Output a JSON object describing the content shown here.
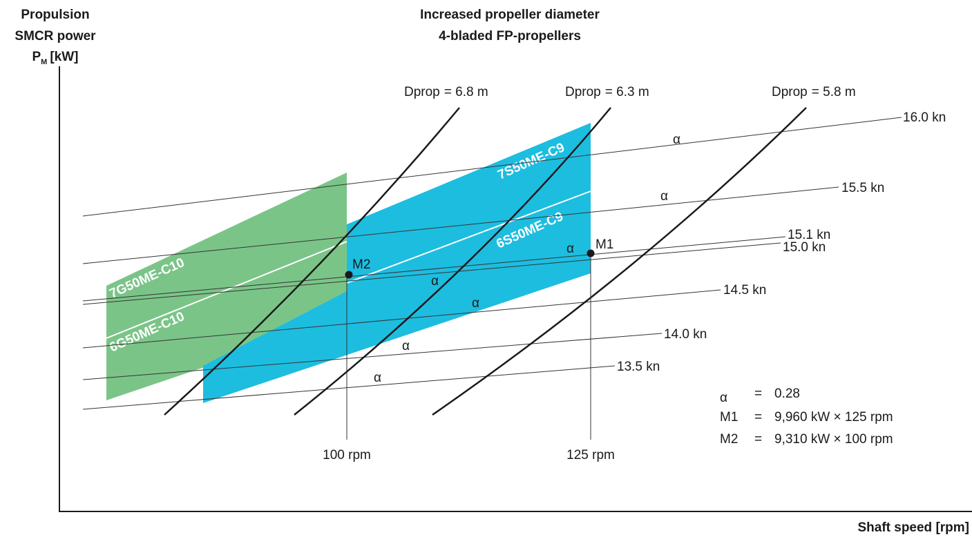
{
  "chart_data": {
    "type": "line",
    "title": "Increased propeller diameter",
    "subtitle": "4-bladed FP-propellers",
    "ylabel_lines": [
      "Propulsion",
      "SMCR power",
      "P",
      "M",
      "[kW]"
    ],
    "xlabel": "Shaft speed [rpm]",
    "engine_layouts": [
      {
        "name": "7G50ME-C10",
        "color": "#7bc488"
      },
      {
        "name": "6G50ME-C10",
        "color": "#7bc488"
      },
      {
        "name": "7S50ME-C9",
        "color": "#1dbde0"
      },
      {
        "name": "6S50ME-C9",
        "color": "#1dbde0"
      }
    ],
    "propeller_curves": [
      {
        "label": "Dprop = 6.8 m",
        "label_main": "Dprop",
        "label_value": "= 6.8 m"
      },
      {
        "label": "Dprop = 6.3 m",
        "label_main": "Dprop",
        "label_value": "= 6.3 m"
      },
      {
        "label": "Dprop = 5.8 m",
        "label_main": "Dprop",
        "label_value": "= 5.8 m"
      }
    ],
    "speed_lines": [
      "16.0 kn",
      "15.5 kn",
      "15.1 kn",
      "15.0 kn",
      "14.5 kn",
      "14.0 kn",
      "13.5 kn"
    ],
    "alpha_symbol": "α",
    "rpm_markers": [
      "100 rpm",
      "125 rpm"
    ],
    "points": [
      {
        "name": "M2",
        "power_kW": 9310,
        "speed_rpm": 100
      },
      {
        "name": "M1",
        "power_kW": 9960,
        "speed_rpm": 125
      }
    ],
    "legend": [
      {
        "key": "α",
        "eq": "=",
        "value": "0.28"
      },
      {
        "key": "M1",
        "eq": "=",
        "value": "9,960 kW × 125 rpm"
      },
      {
        "key": "M2",
        "eq": "=",
        "value": "9,310 kW × 100 rpm"
      }
    ]
  }
}
